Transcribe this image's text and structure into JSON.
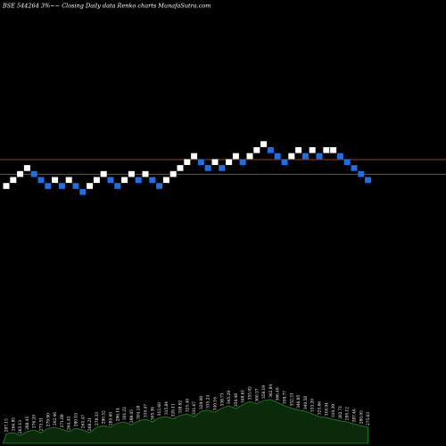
{
  "chart_data": {
    "type": "renko",
    "title": "BSE 544264  3%~~  Closing Daily data  Renko  charts MunafaSutra.com",
    "grid": false,
    "background": "#000000",
    "colors": {
      "up_brick": "#ffffff",
      "down_brick": "#1e6fe6",
      "reference_line": "#a0522d",
      "volume_fill": "#0a2a0a",
      "volume_stroke": "#1f8a1f"
    },
    "reference_levels": [
      2.44,
      0.0
    ],
    "brick_step": 1,
    "bricks": [
      {
        "direction": "up",
        "level": -1
      },
      {
        "direction": "up",
        "level": 0
      },
      {
        "direction": "up",
        "level": 1
      },
      {
        "direction": "up",
        "level": 2
      },
      {
        "direction": "down",
        "level": 1
      },
      {
        "direction": "down",
        "level": 0
      },
      {
        "direction": "down",
        "level": -1
      },
      {
        "direction": "up",
        "level": 0
      },
      {
        "direction": "down",
        "level": -1
      },
      {
        "direction": "up",
        "level": 0
      },
      {
        "direction": "down",
        "level": -1
      },
      {
        "direction": "down",
        "level": -2
      },
      {
        "direction": "up",
        "level": -1
      },
      {
        "direction": "up",
        "level": 0
      },
      {
        "direction": "up",
        "level": 1
      },
      {
        "direction": "down",
        "level": 0
      },
      {
        "direction": "down",
        "level": -1
      },
      {
        "direction": "up",
        "level": 0
      },
      {
        "direction": "up",
        "level": 1
      },
      {
        "direction": "down",
        "level": 0
      },
      {
        "direction": "up",
        "level": 1
      },
      {
        "direction": "down",
        "level": 0
      },
      {
        "direction": "down",
        "level": -1
      },
      {
        "direction": "up",
        "level": 0
      },
      {
        "direction": "up",
        "level": 1
      },
      {
        "direction": "up",
        "level": 2
      },
      {
        "direction": "up",
        "level": 3
      },
      {
        "direction": "up",
        "level": 4
      },
      {
        "direction": "down",
        "level": 3
      },
      {
        "direction": "down",
        "level": 2
      },
      {
        "direction": "up",
        "level": 3
      },
      {
        "direction": "down",
        "level": 2
      },
      {
        "direction": "up",
        "level": 3
      },
      {
        "direction": "up",
        "level": 4
      },
      {
        "direction": "down",
        "level": 3
      },
      {
        "direction": "up",
        "level": 4
      },
      {
        "direction": "up",
        "level": 5
      },
      {
        "direction": "up",
        "level": 6
      },
      {
        "direction": "down",
        "level": 5
      },
      {
        "direction": "down",
        "level": 4
      },
      {
        "direction": "down",
        "level": 3
      },
      {
        "direction": "up",
        "level": 4
      },
      {
        "direction": "up",
        "level": 5
      },
      {
        "direction": "down",
        "level": 4
      },
      {
        "direction": "up",
        "level": 5
      },
      {
        "direction": "down",
        "level": 4
      },
      {
        "direction": "up",
        "level": 5
      },
      {
        "direction": "up",
        "level": 5
      },
      {
        "direction": "down",
        "level": 4
      },
      {
        "direction": "down",
        "level": 3
      },
      {
        "direction": "down",
        "level": 2
      },
      {
        "direction": "down",
        "level": 1
      },
      {
        "direction": "down",
        "level": 0
      }
    ],
    "volume_labels": [
      "287.15",
      "266.85",
      "265.13",
      "288.45",
      "276.20",
      "273.51",
      "279.90",
      "262.46",
      "271.89",
      "264.43",
      "280.10",
      "265.47",
      "268.21",
      "278.33",
      "290.52",
      "285.60",
      "296.14",
      "301.22",
      "298.05",
      "304.18",
      "310.47",
      "305.36",
      "312.60",
      "315.84",
      "320.11",
      "318.92",
      "325.40",
      "331.67",
      "329.08",
      "335.24",
      "340.16",
      "338.73",
      "345.29",
      "350.48",
      "348.61",
      "355.02",
      "360.37",
      "358.19",
      "362.84",
      "366.40",
      "359.77",
      "352.31",
      "346.95",
      "340.58",
      "333.20",
      "325.66",
      "318.04",
      "310.39",
      "302.71",
      "295.12",
      "287.46",
      "280.05",
      "275.63"
    ],
    "volume_levels": [
      0.18,
      0.2,
      0.15,
      0.22,
      0.25,
      0.2,
      0.28,
      0.3,
      0.26,
      0.22,
      0.28,
      0.25,
      0.2,
      0.3,
      0.33,
      0.3,
      0.38,
      0.4,
      0.35,
      0.42,
      0.45,
      0.4,
      0.48,
      0.5,
      0.46,
      0.52,
      0.55,
      0.5,
      0.6,
      0.62,
      0.58,
      0.66,
      0.7,
      0.65,
      0.72,
      0.78,
      0.74,
      0.8,
      0.82,
      0.76,
      0.7,
      0.66,
      0.62,
      0.6,
      0.55,
      0.5,
      0.48,
      0.45,
      0.42,
      0.4,
      0.36,
      0.33,
      0.3
    ]
  }
}
